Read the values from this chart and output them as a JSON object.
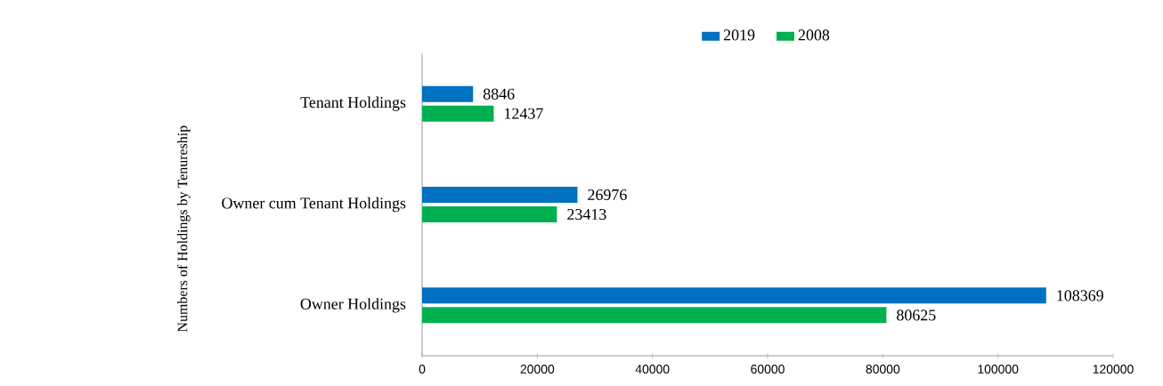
{
  "chart_data": {
    "type": "bar",
    "orientation": "horizontal",
    "ylabel": "Numbers of Holdings by Tenureship",
    "categories": [
      "Tenant Holdings",
      "Owner cum Tenant Holdings",
      "Owner Holdings"
    ],
    "series": [
      {
        "name": "2019",
        "color": "#0070c0",
        "values": [
          8846,
          26976,
          108369
        ]
      },
      {
        "name": "2008",
        "color": "#00b050",
        "values": [
          12437,
          23413,
          80625
        ]
      }
    ],
    "xlim": [
      0,
      120000
    ],
    "xticks": [
      0,
      20000,
      40000,
      60000,
      80000,
      100000,
      120000
    ],
    "data_labels": true,
    "legend": "top",
    "grid": false
  }
}
